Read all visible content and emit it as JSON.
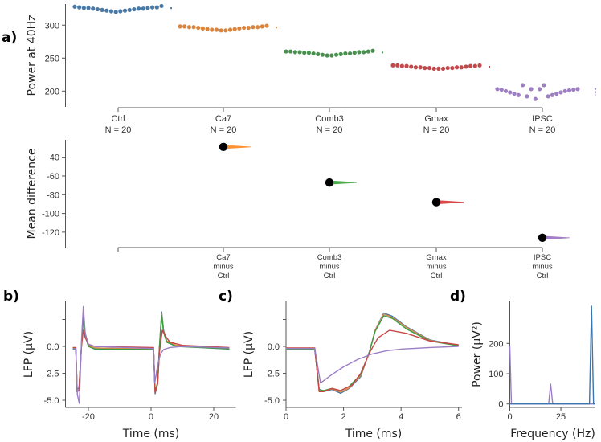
{
  "figure_labels": {
    "a": "a)",
    "b": "b)",
    "c": "c)",
    "d": "d)"
  },
  "chart_data": [
    {
      "id": "swarm",
      "type": "scatter",
      "ylabel": "Power at 40Hz",
      "yticks": [
        200,
        250,
        300
      ],
      "ytick_labels": [
        "200",
        "250",
        "300"
      ],
      "ylim": [
        176,
        332
      ],
      "groups": [
        {
          "name": "Ctrl",
          "n_label": "N =  20",
          "color": "#4a79a5",
          "values": [
            328,
            327,
            326,
            326,
            325,
            324,
            323,
            322,
            321,
            320,
            321,
            322,
            323,
            324,
            325,
            325,
            326,
            327,
            327,
            329
          ]
        },
        {
          "name": "Ca7",
          "n_label": "N =  20",
          "color": "#d9853f",
          "values": [
            298,
            298,
            297,
            297,
            296,
            295,
            294,
            293,
            293,
            292,
            292,
            293,
            294,
            295,
            296,
            296,
            297,
            297,
            298,
            299
          ]
        },
        {
          "name": "Comb3",
          "n_label": "N =  20",
          "color": "#4a9150",
          "values": [
            260,
            260,
            259,
            259,
            258,
            258,
            257,
            256,
            255,
            254,
            254,
            255,
            256,
            257,
            257,
            258,
            259,
            259,
            260,
            261
          ]
        },
        {
          "name": "Gmax",
          "n_label": "N =  20",
          "color": "#c24a4c",
          "values": [
            239,
            239,
            238,
            238,
            237,
            236,
            236,
            235,
            235,
            234,
            234,
            234,
            235,
            235,
            236,
            236,
            237,
            238,
            238,
            239
          ]
        },
        {
          "name": "IPSC",
          "n_label": "N =  20",
          "color": "#9e80c2",
          "values": [
            203,
            202,
            200,
            198,
            196,
            194,
            209,
            192,
            203,
            188,
            203,
            209,
            192,
            194,
            196,
            198,
            200,
            201,
            202,
            203
          ]
        }
      ]
    },
    {
      "id": "mean_diff",
      "type": "scatter",
      "ylabel": "Mean difference",
      "yticks": [
        -40,
        -60,
        -80,
        -100,
        -120
      ],
      "ytick_labels": [
        "-40",
        "-60",
        "-80",
        "-100",
        "-120"
      ],
      "ylim": [
        -136.4,
        -21.4
      ],
      "comparisons": [
        {
          "label": [
            "Ca7",
            "minus",
            "Ctrl"
          ],
          "mean": -29,
          "color": "#ff7f0e"
        },
        {
          "label": [
            "Comb3",
            "minus",
            "Ctrl"
          ],
          "mean": -67,
          "color": "#2ca02c"
        },
        {
          "label": [
            "Gmax",
            "minus",
            "Ctrl"
          ],
          "mean": -88,
          "color": "#d62728"
        },
        {
          "label": [
            "IPSC",
            "minus",
            "Ctrl"
          ],
          "mean": -126,
          "color": "#9467bd"
        }
      ]
    },
    {
      "id": "lfp_full",
      "type": "line",
      "xlabel": "Time (ms)",
      "ylabel": "LFP (μV)",
      "xticks": [
        -20,
        0,
        20
      ],
      "xtick_labels": [
        "-20",
        "0",
        "20"
      ],
      "yticks": [
        2.5,
        0,
        -2.5,
        -5
      ],
      "ytick_labels": [
        "",
        "0.0",
        "-2.5",
        "-5.0"
      ],
      "xlim": [
        -27.3,
        27.05
      ],
      "ylim": [
        -5.67,
        4.18
      ],
      "series": [
        {
          "color": "#3b75af",
          "points": [
            [
              -25,
              -0.2
            ],
            [
              -24,
              -0.2
            ],
            [
              -23.6,
              -4.2
            ],
            [
              -23,
              -4.1
            ],
            [
              -22.2,
              0
            ],
            [
              -21.6,
              2.8
            ],
            [
              -21,
              1.2
            ],
            [
              -20,
              0.1
            ],
            [
              -18,
              -0.15
            ],
            [
              0.8,
              -0.25
            ],
            [
              1.3,
              -4.4
            ],
            [
              2.1,
              -3.4
            ],
            [
              2.7,
              0
            ],
            [
              3.4,
              3.2
            ],
            [
              4,
              1.5
            ],
            [
              5,
              0.5
            ],
            [
              8,
              0.1
            ],
            [
              25,
              -0.2
            ]
          ]
        },
        {
          "color": "#e08b45",
          "points": [
            [
              -25,
              -0.2
            ],
            [
              -24,
              -0.2
            ],
            [
              -23.6,
              -4.1
            ],
            [
              -23,
              -4.0
            ],
            [
              -22.2,
              0
            ],
            [
              -21.6,
              2.7
            ],
            [
              -21,
              1.1
            ],
            [
              -20,
              0.1
            ],
            [
              -18,
              -0.15
            ],
            [
              0.8,
              -0.25
            ],
            [
              1.3,
              -4.3
            ],
            [
              2.1,
              -3.4
            ],
            [
              2.7,
              0
            ],
            [
              3.4,
              3.0
            ],
            [
              4,
              1.4
            ],
            [
              5,
              0.5
            ],
            [
              8,
              0.1
            ],
            [
              25,
              -0.2
            ]
          ]
        },
        {
          "color": "#3c9a45",
          "points": [
            [
              -25,
              -0.3
            ],
            [
              -24,
              -0.3
            ],
            [
              -23.6,
              -3.9
            ],
            [
              -23,
              -3.9
            ],
            [
              -22.2,
              0
            ],
            [
              -21.6,
              2.6
            ],
            [
              -21,
              1.0
            ],
            [
              -20,
              0.0
            ],
            [
              -18,
              -0.25
            ],
            [
              0.8,
              -0.3
            ],
            [
              1.3,
              -4.2
            ],
            [
              2.1,
              -3.3
            ],
            [
              2.7,
              0
            ],
            [
              3.4,
              2.9
            ],
            [
              4,
              1.3
            ],
            [
              5,
              0.4
            ],
            [
              8,
              0.0
            ],
            [
              25,
              -0.25
            ]
          ]
        },
        {
          "color": "#c84646",
          "points": [
            [
              -25,
              -0.1
            ],
            [
              -24,
              -0.1
            ],
            [
              -23.6,
              -4.2
            ],
            [
              -23,
              -4.1
            ],
            [
              -22.2,
              0
            ],
            [
              -21.6,
              1.5
            ],
            [
              -21,
              0.8
            ],
            [
              -20,
              0.2
            ],
            [
              -18,
              0.0
            ],
            [
              0.8,
              -0.1
            ],
            [
              1.3,
              -4.3
            ],
            [
              2.1,
              -3.5
            ],
            [
              2.7,
              -0.5
            ],
            [
              3.6,
              1.5
            ],
            [
              4.5,
              1.0
            ],
            [
              6,
              0.4
            ],
            [
              10,
              0.1
            ],
            [
              25,
              -0.1
            ]
          ]
        },
        {
          "color": "#9a7ec4",
          "points": [
            [
              -25,
              -0.2
            ],
            [
              -24,
              -0.2
            ],
            [
              -23.5,
              -4.5
            ],
            [
              -22.9,
              -5.3
            ],
            [
              -22.2,
              0.5
            ],
            [
              -21.6,
              3.7
            ],
            [
              -21,
              1.2
            ],
            [
              -20,
              0.2
            ],
            [
              -18,
              0.0
            ],
            [
              0.8,
              -0.2
            ],
            [
              1.2,
              -3.4
            ],
            [
              2,
              -1.9
            ],
            [
              3,
              -0.7
            ],
            [
              4,
              -0.3
            ],
            [
              6,
              -0.1
            ],
            [
              10,
              0.0
            ],
            [
              25,
              -0.15
            ]
          ]
        }
      ]
    },
    {
      "id": "lfp_zoom",
      "type": "line",
      "xlabel": "Time (ms)",
      "ylabel": "LFP (μV)",
      "xticks": [
        0,
        2,
        4,
        6
      ],
      "xtick_labels": [
        "0",
        "2",
        "4",
        "6"
      ],
      "yticks": [
        2.5,
        0,
        -2.5,
        -5
      ],
      "ytick_labels": [
        "",
        "0.0",
        "-2.5",
        "-5.0"
      ],
      "xlim": [
        0,
        6.12
      ],
      "ylim": [
        -5.67,
        4.18
      ],
      "series": [
        {
          "color": "#3b75af",
          "points": [
            [
              0,
              -0.25
            ],
            [
              1,
              -0.25
            ],
            [
              1.15,
              -4.0
            ],
            [
              1.3,
              -4.2
            ],
            [
              1.6,
              -4.0
            ],
            [
              1.9,
              -4.35
            ],
            [
              2.2,
              -3.9
            ],
            [
              2.6,
              -2.8
            ],
            [
              2.9,
              -0.5
            ],
            [
              3.1,
              1.5
            ],
            [
              3.4,
              3.1
            ],
            [
              3.7,
              2.8
            ],
            [
              4.2,
              1.8
            ],
            [
              5,
              0.6
            ],
            [
              6,
              0.1
            ]
          ]
        },
        {
          "color": "#e08b45",
          "points": [
            [
              0,
              -0.25
            ],
            [
              1,
              -0.25
            ],
            [
              1.15,
              -4.0
            ],
            [
              1.3,
              -4.15
            ],
            [
              1.6,
              -3.95
            ],
            [
              1.9,
              -4.25
            ],
            [
              2.2,
              -3.85
            ],
            [
              2.6,
              -2.7
            ],
            [
              2.9,
              -0.5
            ],
            [
              3.1,
              1.5
            ],
            [
              3.4,
              3.0
            ],
            [
              3.7,
              2.7
            ],
            [
              4.2,
              1.75
            ],
            [
              5,
              0.55
            ],
            [
              6,
              0.1
            ]
          ]
        },
        {
          "color": "#3c9a45",
          "points": [
            [
              0,
              -0.3
            ],
            [
              1,
              -0.3
            ],
            [
              1.15,
              -4.0
            ],
            [
              1.3,
              -4.1
            ],
            [
              1.6,
              -3.9
            ],
            [
              1.9,
              -4.1
            ],
            [
              2.2,
              -3.7
            ],
            [
              2.6,
              -2.6
            ],
            [
              2.9,
              -0.5
            ],
            [
              3.1,
              1.4
            ],
            [
              3.4,
              2.85
            ],
            [
              3.7,
              2.6
            ],
            [
              4.2,
              1.6
            ],
            [
              5,
              0.5
            ],
            [
              6,
              0.05
            ]
          ]
        },
        {
          "color": "#c84646",
          "points": [
            [
              0,
              -0.15
            ],
            [
              1,
              -0.15
            ],
            [
              1.15,
              -4.2
            ],
            [
              1.3,
              -4.2
            ],
            [
              1.6,
              -3.9
            ],
            [
              1.9,
              -4.1
            ],
            [
              2.3,
              -3.6
            ],
            [
              2.6,
              -2.5
            ],
            [
              2.9,
              -0.6
            ],
            [
              3.2,
              0.8
            ],
            [
              3.6,
              1.5
            ],
            [
              4.2,
              1.2
            ],
            [
              5,
              0.5
            ],
            [
              6,
              0.15
            ]
          ]
        },
        {
          "color": "#9a7ec4",
          "points": [
            [
              0,
              -0.2
            ],
            [
              1,
              -0.2
            ],
            [
              1.2,
              -3.4
            ],
            [
              1.6,
              -2.6
            ],
            [
              2,
              -1.9
            ],
            [
              2.5,
              -1.2
            ],
            [
              3,
              -0.7
            ],
            [
              3.5,
              -0.4
            ],
            [
              4,
              -0.25
            ],
            [
              5,
              -0.1
            ],
            [
              6,
              0.0
            ]
          ]
        }
      ]
    },
    {
      "id": "spectrum",
      "type": "line",
      "xlabel": "Frequency (Hz)",
      "ylabel": "Power (μV²)",
      "xticks": [
        0,
        25
      ],
      "xtick_labels": [
        "0",
        "25"
      ],
      "yticks": [
        0,
        100,
        200
      ],
      "ytick_labels": [
        "0",
        "100",
        "200"
      ],
      "xlim": [
        0,
        41.9
      ],
      "ylim": [
        -11.4,
        338.7
      ],
      "series": [
        {
          "color": "#9a7ec4",
          "points": [
            [
              0,
              193
            ],
            [
              0.8,
              0
            ],
            [
              19,
              0
            ],
            [
              20,
              66
            ],
            [
              21,
              0
            ],
            [
              41.9,
              0
            ]
          ]
        },
        {
          "color": "#3b75af",
          "points": [
            [
              0,
              0
            ],
            [
              39,
              0
            ],
            [
              40,
              323
            ],
            [
              41,
              0
            ],
            [
              41.9,
              0
            ]
          ]
        }
      ]
    }
  ]
}
